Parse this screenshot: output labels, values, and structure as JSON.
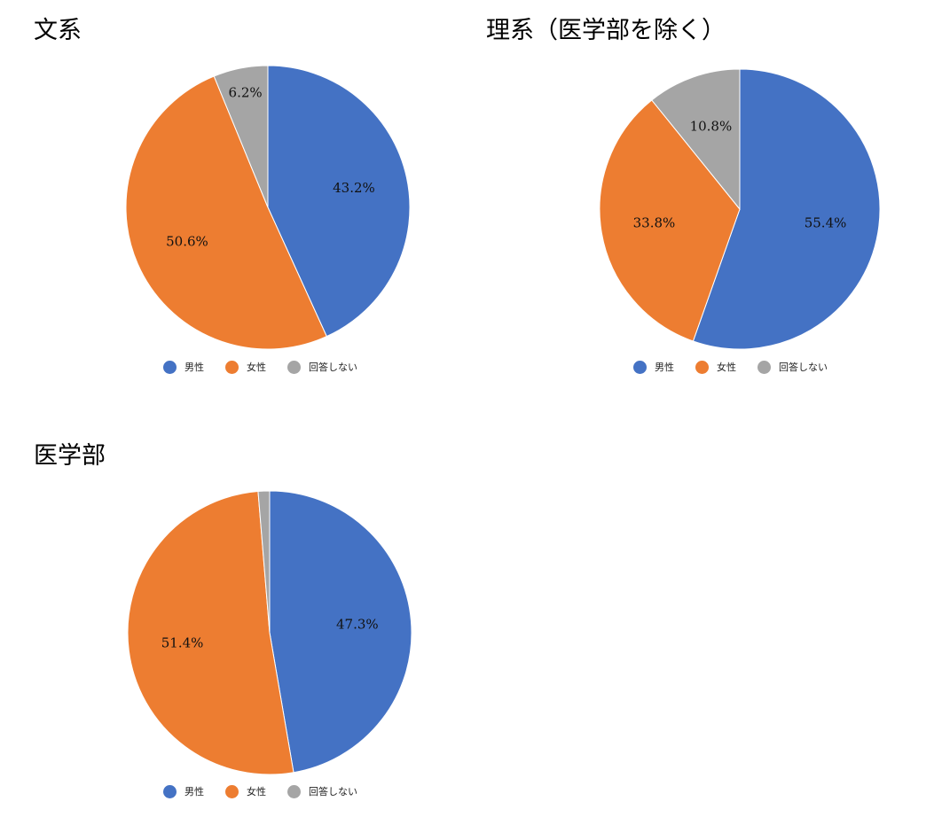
{
  "chart_data": [
    {
      "type": "pie",
      "title": "文系",
      "slices": [
        {
          "label": "男性",
          "value": 43.2,
          "display": "43.2%"
        },
        {
          "label": "女性",
          "value": 50.6,
          "display": "50.6%"
        },
        {
          "label": "回答しない",
          "value": 6.2,
          "display": "6.2%"
        }
      ],
      "legend": [
        "男性",
        "女性",
        "回答しない"
      ],
      "legend_position": "bottom"
    },
    {
      "type": "pie",
      "title": "理系（医学部を除く）",
      "slices": [
        {
          "label": "男性",
          "value": 55.4,
          "display": "55.4%"
        },
        {
          "label": "女性",
          "value": 33.8,
          "display": "33.8%"
        },
        {
          "label": "回答しない",
          "value": 10.8,
          "display": "10.8%"
        }
      ],
      "legend": [
        "男性",
        "女性",
        "回答しない"
      ],
      "legend_position": "bottom"
    },
    {
      "type": "pie",
      "title": "医学部",
      "slices": [
        {
          "label": "男性",
          "value": 47.3,
          "display": "47.3%"
        },
        {
          "label": "女性",
          "value": 51.4,
          "display": "51.4%"
        },
        {
          "label": "回答しない",
          "value": 1.3,
          "display": ""
        }
      ],
      "legend": [
        "男性",
        "女性",
        "回答しない"
      ],
      "legend_position": "bottom"
    }
  ],
  "colors": {
    "男性": "#4472c4",
    "女性": "#ed7d31",
    "回答しない": "#a5a5a5"
  }
}
